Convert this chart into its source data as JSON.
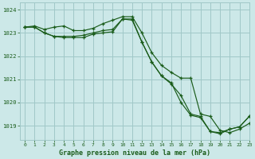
{
  "title": "Graphe pression niveau de la mer (hPa)",
  "bg_color": "#cce8e8",
  "grid_color": "#a0c8c8",
  "line_color": "#1a5c1a",
  "xlim": [
    -0.5,
    23
  ],
  "ylim": [
    1018.4,
    1024.3
  ],
  "yticks": [
    1019,
    1020,
    1021,
    1022,
    1023,
    1024
  ],
  "xticks": [
    0,
    1,
    2,
    3,
    4,
    5,
    6,
    7,
    8,
    9,
    10,
    11,
    12,
    13,
    14,
    15,
    16,
    17,
    18,
    19,
    20,
    21,
    22,
    23
  ],
  "series1_x": [
    0,
    1,
    2,
    3,
    4,
    5,
    6,
    7,
    8,
    9,
    10,
    11,
    12,
    13,
    14,
    15,
    16,
    17,
    18,
    19,
    20,
    21,
    22,
    23
  ],
  "series1_y": [
    1023.25,
    1023.3,
    1023.15,
    1023.25,
    1023.3,
    1023.1,
    1023.1,
    1023.2,
    1023.4,
    1023.55,
    1023.7,
    1023.7,
    1023.0,
    1022.15,
    1021.6,
    1021.3,
    1021.05,
    1021.05,
    1019.5,
    1019.4,
    1018.8,
    1018.7,
    1018.85,
    1019.1
  ],
  "series2_x": [
    0,
    1,
    2,
    3,
    4,
    5,
    6,
    7,
    8,
    9,
    10,
    11,
    12,
    13,
    14,
    15,
    16,
    17,
    18,
    19,
    20,
    21,
    22,
    23
  ],
  "series2_y": [
    1023.25,
    1023.25,
    1023.0,
    1022.85,
    1022.85,
    1022.85,
    1022.9,
    1023.0,
    1023.1,
    1023.15,
    1023.6,
    1023.6,
    1022.6,
    1021.75,
    1021.15,
    1020.8,
    1020.3,
    1019.5,
    1019.4,
    1018.75,
    1018.7,
    1018.85,
    1018.95,
    1019.4
  ],
  "series3_x": [
    0,
    1,
    2,
    3,
    4,
    5,
    6,
    7,
    8,
    9,
    10,
    11,
    12,
    13,
    14,
    15,
    16,
    17,
    18,
    19,
    20,
    21,
    22,
    23
  ],
  "series3_y": [
    1023.25,
    1023.25,
    1023.0,
    1022.85,
    1022.8,
    1022.8,
    1022.8,
    1022.95,
    1023.0,
    1023.05,
    1023.6,
    1023.55,
    1022.6,
    1021.75,
    1021.15,
    1020.85,
    1020.0,
    1019.45,
    1019.35,
    1018.75,
    1018.65,
    1018.85,
    1018.95,
    1019.4
  ]
}
